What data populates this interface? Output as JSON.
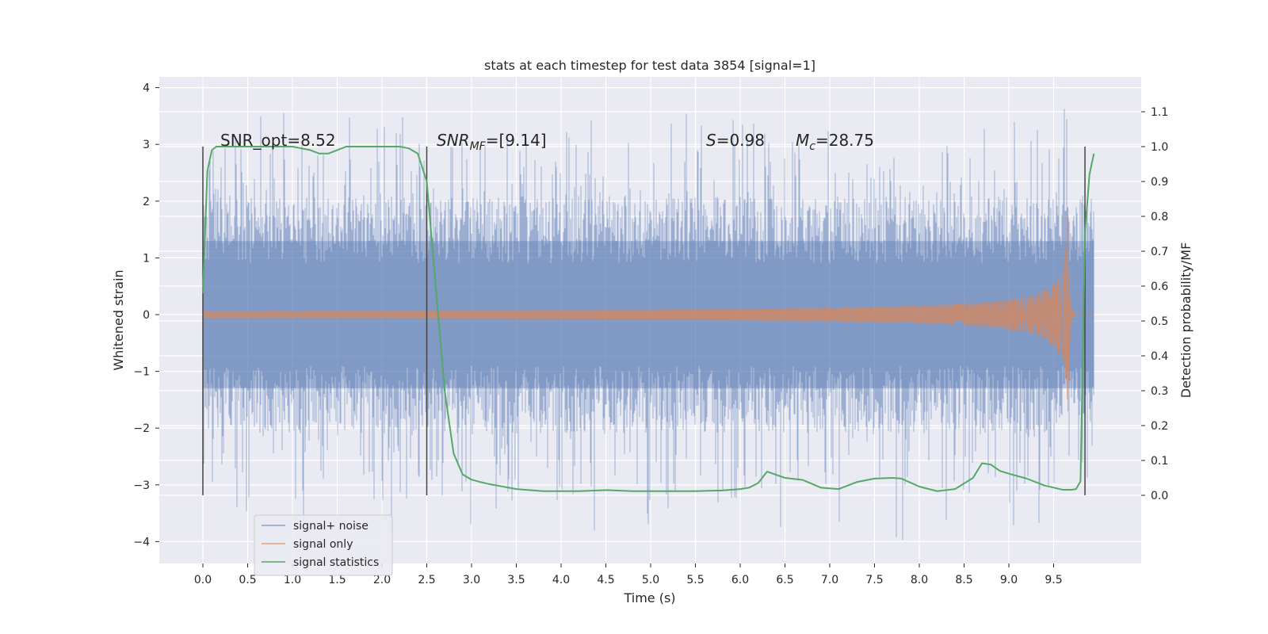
{
  "chart_data": {
    "type": "line",
    "title": "stats at each timestep for test data 3854 [signal=1]",
    "xlabel": "Time (s)",
    "ylabel": "Whitened strain",
    "ylabel_right": "Detection probability/MF",
    "xlim": [
      -0.5,
      10.45
    ],
    "ylim": [
      -4.4,
      4.15
    ],
    "ylim_right": [
      -0.2,
      1.2
    ],
    "grid": true,
    "legend_position": "lower-left",
    "x_ticks": [
      "0.0",
      "0.5",
      "1.0",
      "1.5",
      "2.0",
      "2.5",
      "3.0",
      "3.5",
      "4.0",
      "4.5",
      "5.0",
      "5.5",
      "6.0",
      "6.5",
      "7.0",
      "7.5",
      "8.0",
      "8.5",
      "9.0",
      "9.5"
    ],
    "y_ticks": [
      "4",
      "3",
      "2",
      "1",
      "0",
      "−1",
      "−2",
      "−3",
      "−4"
    ],
    "y_ticks_right": [
      "1.1",
      "1.0",
      "0.9",
      "0.8",
      "0.7",
      "0.6",
      "0.5",
      "0.4",
      "0.3",
      "0.2",
      "0.1",
      "0.0"
    ],
    "annotations": {
      "snr_opt": "SNR_opt=8.52",
      "snr_mf_base": "SNR",
      "snr_mf_sub": "MF",
      "snr_mf_value": "=[9.14]",
      "s_sym": "S",
      "s_value": "=0.98",
      "mc_sym": "M",
      "mc_sub": "c",
      "mc_value": "=28.75"
    },
    "vertical_lines_x": [
      0.0,
      2.5,
      9.85
    ],
    "series": [
      {
        "name": "signal+ noise",
        "color": "#4c72b0",
        "x_range": [
          0.0,
          9.95
        ],
        "typical_band": [
          -1.8,
          1.8
        ],
        "peak_range": [
          -4.1,
          3.8
        ]
      },
      {
        "name": "signal only",
        "color": "#dd8452",
        "x_range": [
          0.0,
          9.95
        ],
        "chirp_peak_time": 9.66,
        "peak_amplitude": 1.9
      },
      {
        "name": "signal statistics",
        "color": "#55a868",
        "x": [
          0.0,
          0.05,
          0.1,
          0.15,
          0.2,
          0.4,
          0.6,
          0.8,
          1.0,
          1.2,
          1.3,
          1.4,
          1.5,
          1.6,
          1.8,
          2.0,
          2.2,
          2.3,
          2.4,
          2.5,
          2.6,
          2.7,
          2.8,
          2.9,
          3.0,
          3.1,
          3.2,
          3.5,
          3.8,
          4.0,
          4.2,
          4.5,
          4.8,
          5.0,
          5.5,
          5.8,
          6.0,
          6.1,
          6.2,
          6.3,
          6.5,
          6.7,
          6.9,
          7.1,
          7.3,
          7.5,
          7.7,
          7.8,
          8.0,
          8.2,
          8.4,
          8.6,
          8.7,
          8.8,
          8.9,
          9.0,
          9.2,
          9.4,
          9.6,
          9.7,
          9.75,
          9.8,
          9.85,
          9.9,
          9.95
        ],
        "values": [
          0.58,
          0.93,
          0.99,
          1.0,
          1.0,
          1.0,
          1.0,
          1.0,
          1.0,
          0.99,
          0.98,
          0.98,
          0.99,
          1.0,
          1.0,
          1.0,
          1.0,
          0.995,
          0.98,
          0.9,
          0.6,
          0.3,
          0.12,
          0.06,
          0.045,
          0.038,
          0.032,
          0.018,
          0.012,
          0.012,
          0.012,
          0.015,
          0.012,
          0.012,
          0.012,
          0.014,
          0.018,
          0.022,
          0.035,
          0.068,
          0.05,
          0.044,
          0.022,
          0.018,
          0.038,
          0.048,
          0.05,
          0.048,
          0.025,
          0.012,
          0.018,
          0.05,
          0.092,
          0.088,
          0.07,
          0.062,
          0.048,
          0.028,
          0.016,
          0.016,
          0.018,
          0.04,
          0.75,
          0.92,
          0.98
        ]
      }
    ]
  }
}
